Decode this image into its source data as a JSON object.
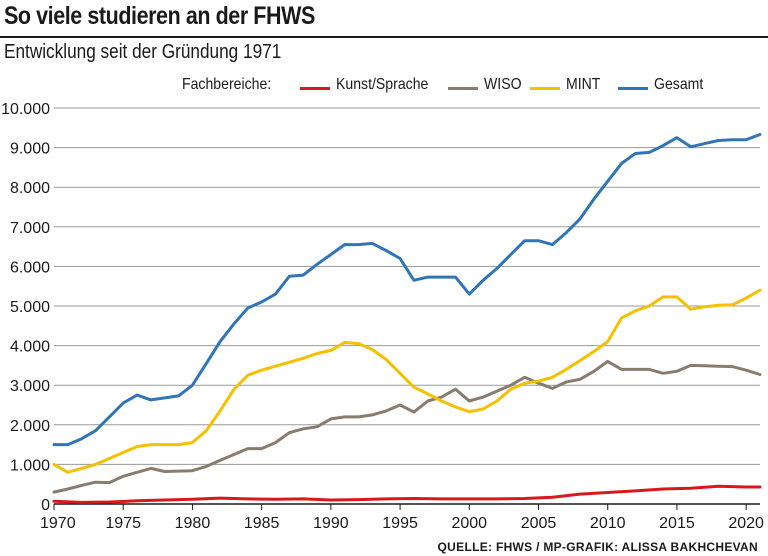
{
  "title": "So viele studieren an der FHWS",
  "subtitle": "Entwicklung seit der Gründung 1971",
  "source": "QUELLE: FHWS / MP-GRAFIK: ALISSA BAKHCHEVAN",
  "legend_title": "Fachbereiche:",
  "chart_data": {
    "type": "line",
    "title": "So viele studieren an der FHWS",
    "subtitle": "Entwicklung seit der Gründung 1971",
    "xlabel": "",
    "ylabel": "",
    "xlim": [
      1970,
      2021
    ],
    "ylim": [
      0,
      10000
    ],
    "grid": true,
    "legend_position": "top",
    "x_ticks": [
      1970,
      1975,
      1980,
      1985,
      1990,
      1995,
      2000,
      2005,
      2010,
      2015,
      2020
    ],
    "x_tick_labels": [
      "1970",
      "1975",
      "1980",
      "1985",
      "1990",
      "1995",
      "2000",
      "2005",
      "2010",
      "2015",
      "2020"
    ],
    "y_ticks": [
      0,
      1000,
      2000,
      3000,
      4000,
      5000,
      6000,
      7000,
      8000,
      9000,
      10000
    ],
    "y_tick_labels": [
      "0",
      "1.000",
      "2.000",
      "3.000",
      "4.000",
      "5.000",
      "6.000",
      "7.000",
      "8.000",
      "9.000",
      "10.000"
    ],
    "series": [
      {
        "name": "Kunst/Sprache",
        "color": "#d7191c",
        "x": [
          1970,
          1972,
          1974,
          1976,
          1978,
          1980,
          1982,
          1984,
          1986,
          1988,
          1990,
          1992,
          1994,
          1996,
          1998,
          2000,
          2002,
          2004,
          2006,
          2008,
          2010,
          2012,
          2014,
          2016,
          2018,
          2020,
          2021
        ],
        "values": [
          70,
          40,
          50,
          80,
          100,
          120,
          150,
          130,
          120,
          130,
          100,
          110,
          130,
          140,
          130,
          130,
          130,
          140,
          170,
          250,
          290,
          330,
          380,
          400,
          450,
          430,
          430
        ]
      },
      {
        "name": "WISO",
        "color": "#8a7b6f",
        "x": [
          1970,
          1971,
          1972,
          1973,
          1974,
          1975,
          1976,
          1977,
          1978,
          1979,
          1980,
          1981,
          1982,
          1983,
          1984,
          1985,
          1986,
          1987,
          1988,
          1989,
          1990,
          1991,
          1992,
          1993,
          1994,
          1995,
          1996,
          1997,
          1998,
          1999,
          2000,
          2001,
          2002,
          2003,
          2004,
          2005,
          2006,
          2007,
          2008,
          2009,
          2010,
          2011,
          2012,
          2013,
          2014,
          2015,
          2016,
          2017,
          2018,
          2019,
          2020,
          2021
        ],
        "values": [
          300,
          380,
          470,
          550,
          540,
          700,
          800,
          900,
          820,
          830,
          840,
          950,
          1100,
          1250,
          1400,
          1400,
          1550,
          1800,
          1900,
          1950,
          2150,
          2200,
          2200,
          2250,
          2350,
          2500,
          2320,
          2600,
          2700,
          2900,
          2600,
          2700,
          2850,
          3000,
          3200,
          3050,
          2920,
          3080,
          3150,
          3350,
          3600,
          3400,
          3400,
          3400,
          3300,
          3350,
          3500,
          3490,
          3480,
          3470,
          3380,
          3270
        ]
      },
      {
        "name": "MINT",
        "color": "#f5c000",
        "x": [
          1970,
          1971,
          1972,
          1973,
          1974,
          1975,
          1976,
          1977,
          1978,
          1979,
          1980,
          1981,
          1982,
          1983,
          1984,
          1985,
          1986,
          1987,
          1988,
          1989,
          1990,
          1991,
          1992,
          1993,
          1994,
          1995,
          1996,
          1997,
          1998,
          1999,
          2000,
          2001,
          2002,
          2003,
          2004,
          2005,
          2006,
          2007,
          2008,
          2009,
          2010,
          2011,
          2012,
          2013,
          2014,
          2015,
          2016,
          2017,
          2018,
          2019,
          2020,
          2021
        ],
        "values": [
          1000,
          800,
          900,
          1000,
          1150,
          1300,
          1450,
          1500,
          1500,
          1500,
          1550,
          1850,
          2350,
          2900,
          3250,
          3380,
          3480,
          3580,
          3680,
          3800,
          3880,
          4080,
          4050,
          3900,
          3650,
          3300,
          2950,
          2780,
          2600,
          2450,
          2330,
          2400,
          2600,
          2900,
          3050,
          3100,
          3200,
          3400,
          3620,
          3850,
          4100,
          4700,
          4880,
          5000,
          5230,
          5230,
          4920,
          4980,
          5020,
          5030,
          5200,
          5400
        ]
      },
      {
        "name": "Gesamt",
        "color": "#2f75b8",
        "x": [
          1970,
          1971,
          1972,
          1973,
          1974,
          1975,
          1976,
          1977,
          1978,
          1979,
          1980,
          1981,
          1982,
          1983,
          1984,
          1985,
          1986,
          1987,
          1988,
          1989,
          1990,
          1991,
          1992,
          1993,
          1994,
          1995,
          1996,
          1997,
          1998,
          1999,
          2000,
          2001,
          2002,
          2003,
          2004,
          2005,
          2006,
          2007,
          2008,
          2009,
          2010,
          2011,
          2012,
          2013,
          2014,
          2015,
          2016,
          2017,
          2018,
          2019,
          2020,
          2021
        ],
        "values": [
          1500,
          1500,
          1650,
          1850,
          2200,
          2550,
          2750,
          2630,
          2680,
          2730,
          3000,
          3550,
          4100,
          4550,
          4950,
          5100,
          5300,
          5750,
          5780,
          6050,
          6300,
          6550,
          6550,
          6580,
          6400,
          6200,
          5650,
          5730,
          5730,
          5730,
          5300,
          5650,
          5950,
          6300,
          6650,
          6650,
          6550,
          6850,
          7200,
          7700,
          8150,
          8600,
          8850,
          8880,
          9050,
          9250,
          9020,
          9100,
          9180,
          9200,
          9200,
          9330
        ]
      }
    ]
  }
}
